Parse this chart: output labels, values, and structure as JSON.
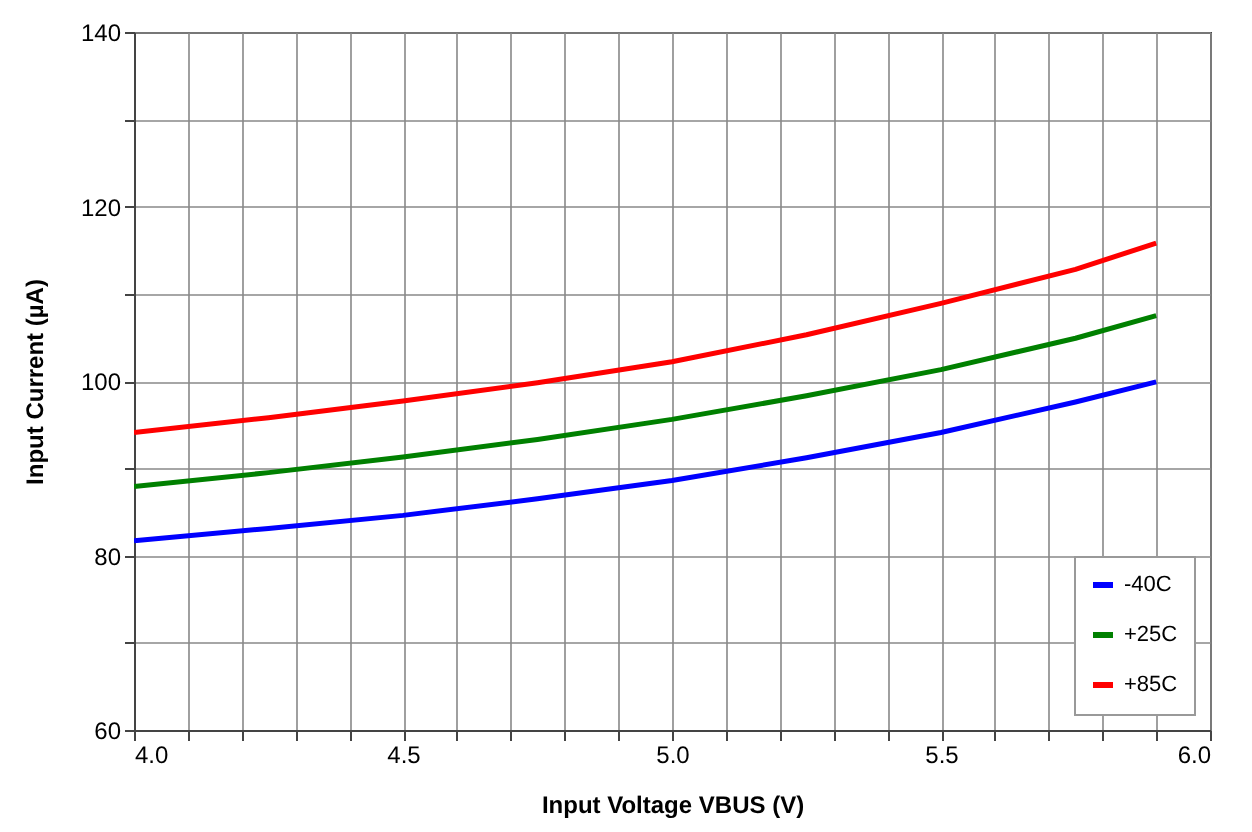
{
  "chart_data": {
    "type": "line",
    "xlabel": "Input Voltage VBUS (V)",
    "ylabel": "Input Current (µA)",
    "x": [
      4.0,
      4.25,
      4.5,
      4.75,
      5.0,
      5.25,
      5.5,
      5.75,
      5.9
    ],
    "series": [
      {
        "name": "-40C",
        "color": "#0000ff",
        "values": [
          81.7,
          83.1,
          84.6,
          86.5,
          88.6,
          91.2,
          94.1,
          97.6,
          99.9
        ]
      },
      {
        "name": "+25C",
        "color": "#008000",
        "values": [
          87.9,
          89.5,
          91.3,
          93.3,
          95.6,
          98.3,
          101.3,
          104.9,
          107.5
        ]
      },
      {
        "name": "+85C",
        "color": "#ff0000",
        "values": [
          94.1,
          95.8,
          97.7,
          99.8,
          102.2,
          105.3,
          108.9,
          112.8,
          115.8
        ]
      }
    ],
    "xlim": [
      4.0,
      6.0
    ],
    "xticks": [
      {
        "value": 4.0,
        "label": "4.0"
      },
      {
        "value": 4.1,
        "label": null
      },
      {
        "value": 4.2,
        "label": null
      },
      {
        "value": 4.3,
        "label": null
      },
      {
        "value": 4.4,
        "label": null
      },
      {
        "value": 4.5,
        "label": "4.5"
      },
      {
        "value": 4.6,
        "label": null
      },
      {
        "value": 4.7,
        "label": null
      },
      {
        "value": 4.8,
        "label": null
      },
      {
        "value": 4.9,
        "label": null
      },
      {
        "value": 5.0,
        "label": "5.0"
      },
      {
        "value": 5.1,
        "label": null
      },
      {
        "value": 5.2,
        "label": null
      },
      {
        "value": 5.3,
        "label": null
      },
      {
        "value": 5.4,
        "label": null
      },
      {
        "value": 5.5,
        "label": "5.5"
      },
      {
        "value": 5.6,
        "label": null
      },
      {
        "value": 5.7,
        "label": null
      },
      {
        "value": 5.8,
        "label": null
      },
      {
        "value": 5.9,
        "label": null
      },
      {
        "value": 6.0,
        "label": "6.0"
      }
    ],
    "ylim": [
      60,
      140
    ],
    "yticks": [
      60,
      {
        "value": 70,
        "label": null
      },
      80,
      {
        "value": 90,
        "label": null
      },
      100,
      {
        "value": 110,
        "label": null
      },
      120,
      {
        "value": 130,
        "label": null
      },
      140
    ],
    "grid": true,
    "legend": "bottom right",
    "line_style": "solid",
    "marker": "none"
  }
}
